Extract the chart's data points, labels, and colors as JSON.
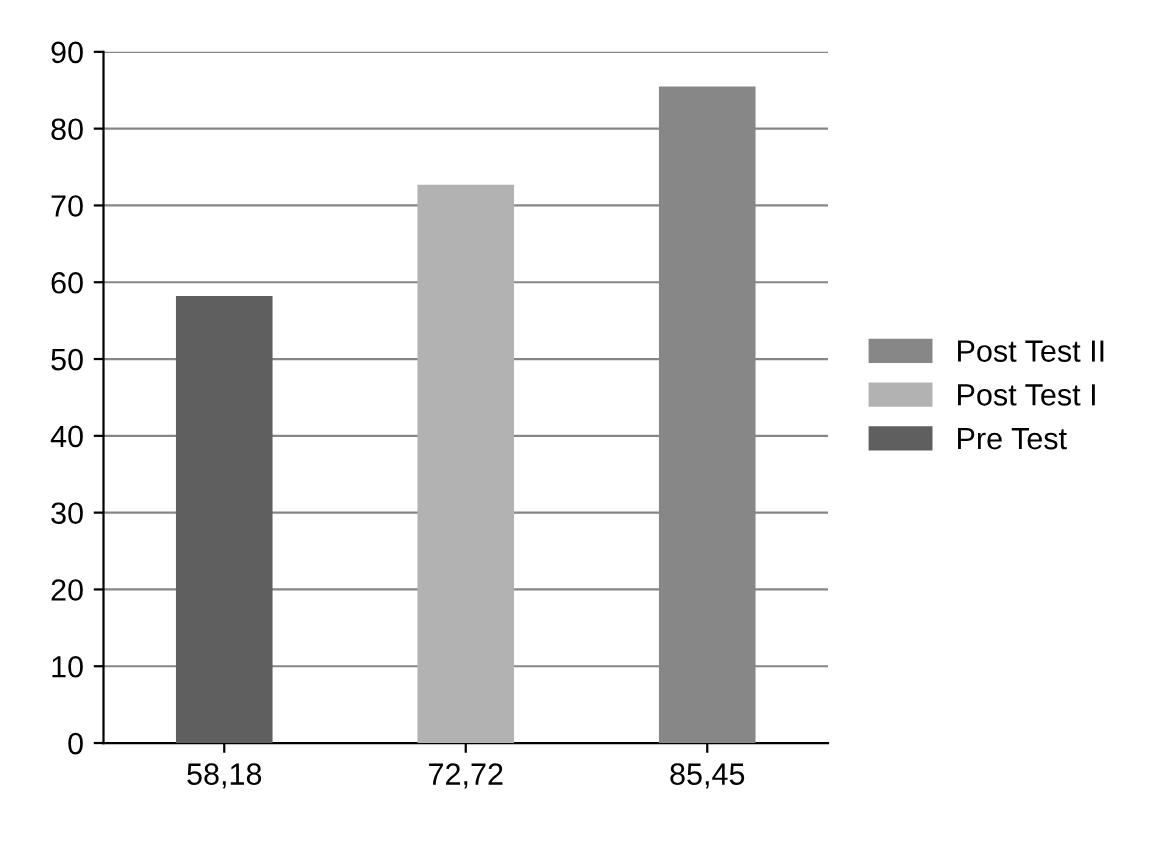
{
  "chart_data": {
    "type": "bar",
    "categories": [
      "58,18",
      "72,72",
      "85,45"
    ],
    "stacked": true,
    "series": [
      {
        "name": "Pre Test",
        "color": "#5f5f5f",
        "values": [
          58.2,
          null,
          null
        ]
      },
      {
        "name": "Post Test I",
        "color": "#b2b2b2",
        "values": [
          null,
          72.7,
          null
        ]
      },
      {
        "name": "Post Test II",
        "color": "#878787",
        "values": [
          null,
          null,
          85.5
        ]
      }
    ],
    "ylim": [
      0,
      90
    ],
    "yticks": [
      0,
      10,
      20,
      30,
      40,
      50,
      60,
      70,
      80,
      90
    ],
    "grid": "y",
    "legend": "right"
  }
}
